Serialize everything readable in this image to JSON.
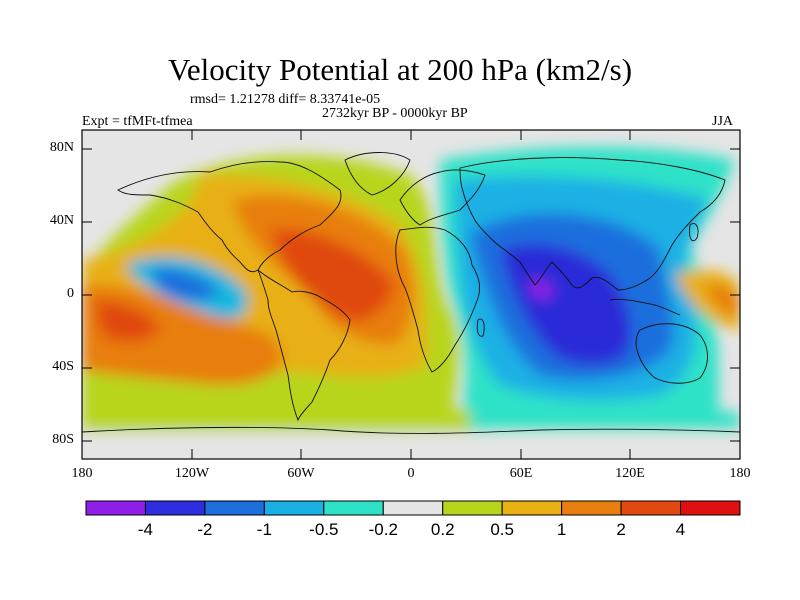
{
  "title": "Velocity Potential at 200 hPa (km2/s)",
  "stats": "rmsd= 1.21278 diff= 8.33741e-05",
  "period": "2732kyr BP - 0000kyr BP",
  "experiment": "Expt = tfMFt-tfmea",
  "season": "JJA",
  "map": {
    "projection": "cylindrical equidistant",
    "lon_range": [
      -180,
      180
    ],
    "lat_range": [
      -90,
      90
    ],
    "lat_ticks": [
      "80N",
      "40N",
      "0",
      "40S",
      "80S"
    ],
    "lon_ticks": [
      "180",
      "120W",
      "60W",
      "0",
      "60E",
      "120E",
      "180"
    ],
    "fill_regions": [
      {
        "name": "pacific-atlantic-positive",
        "level": "0.5 to 1",
        "color": "#b8d51e"
      },
      {
        "name": "atlantic-max",
        "level": "2 to 4",
        "color": "#e04a10"
      },
      {
        "name": "indian-ocean-min",
        "level": "-4 to -2",
        "color": "#2a2ad8"
      },
      {
        "name": "indian-ocean-core",
        "level": "< -4",
        "color": "#9a1ee8"
      },
      {
        "name": "east-pacific-negative",
        "level": "-1 to -0.5",
        "color": "#18b8e0"
      }
    ]
  },
  "colorbar": {
    "labels": [
      "-4",
      "-2",
      "-1",
      "-0.5",
      "-0.2",
      "0.2",
      "0.5",
      "1",
      "2",
      "4"
    ],
    "colors": [
      "#8f1ee8",
      "#2e2ee0",
      "#1e6edd",
      "#1bb0e5",
      "#2ee2c8",
      "#e5e5e5",
      "#b8d51e",
      "#e8b012",
      "#e87e10",
      "#e04a10",
      "#e01010"
    ]
  }
}
